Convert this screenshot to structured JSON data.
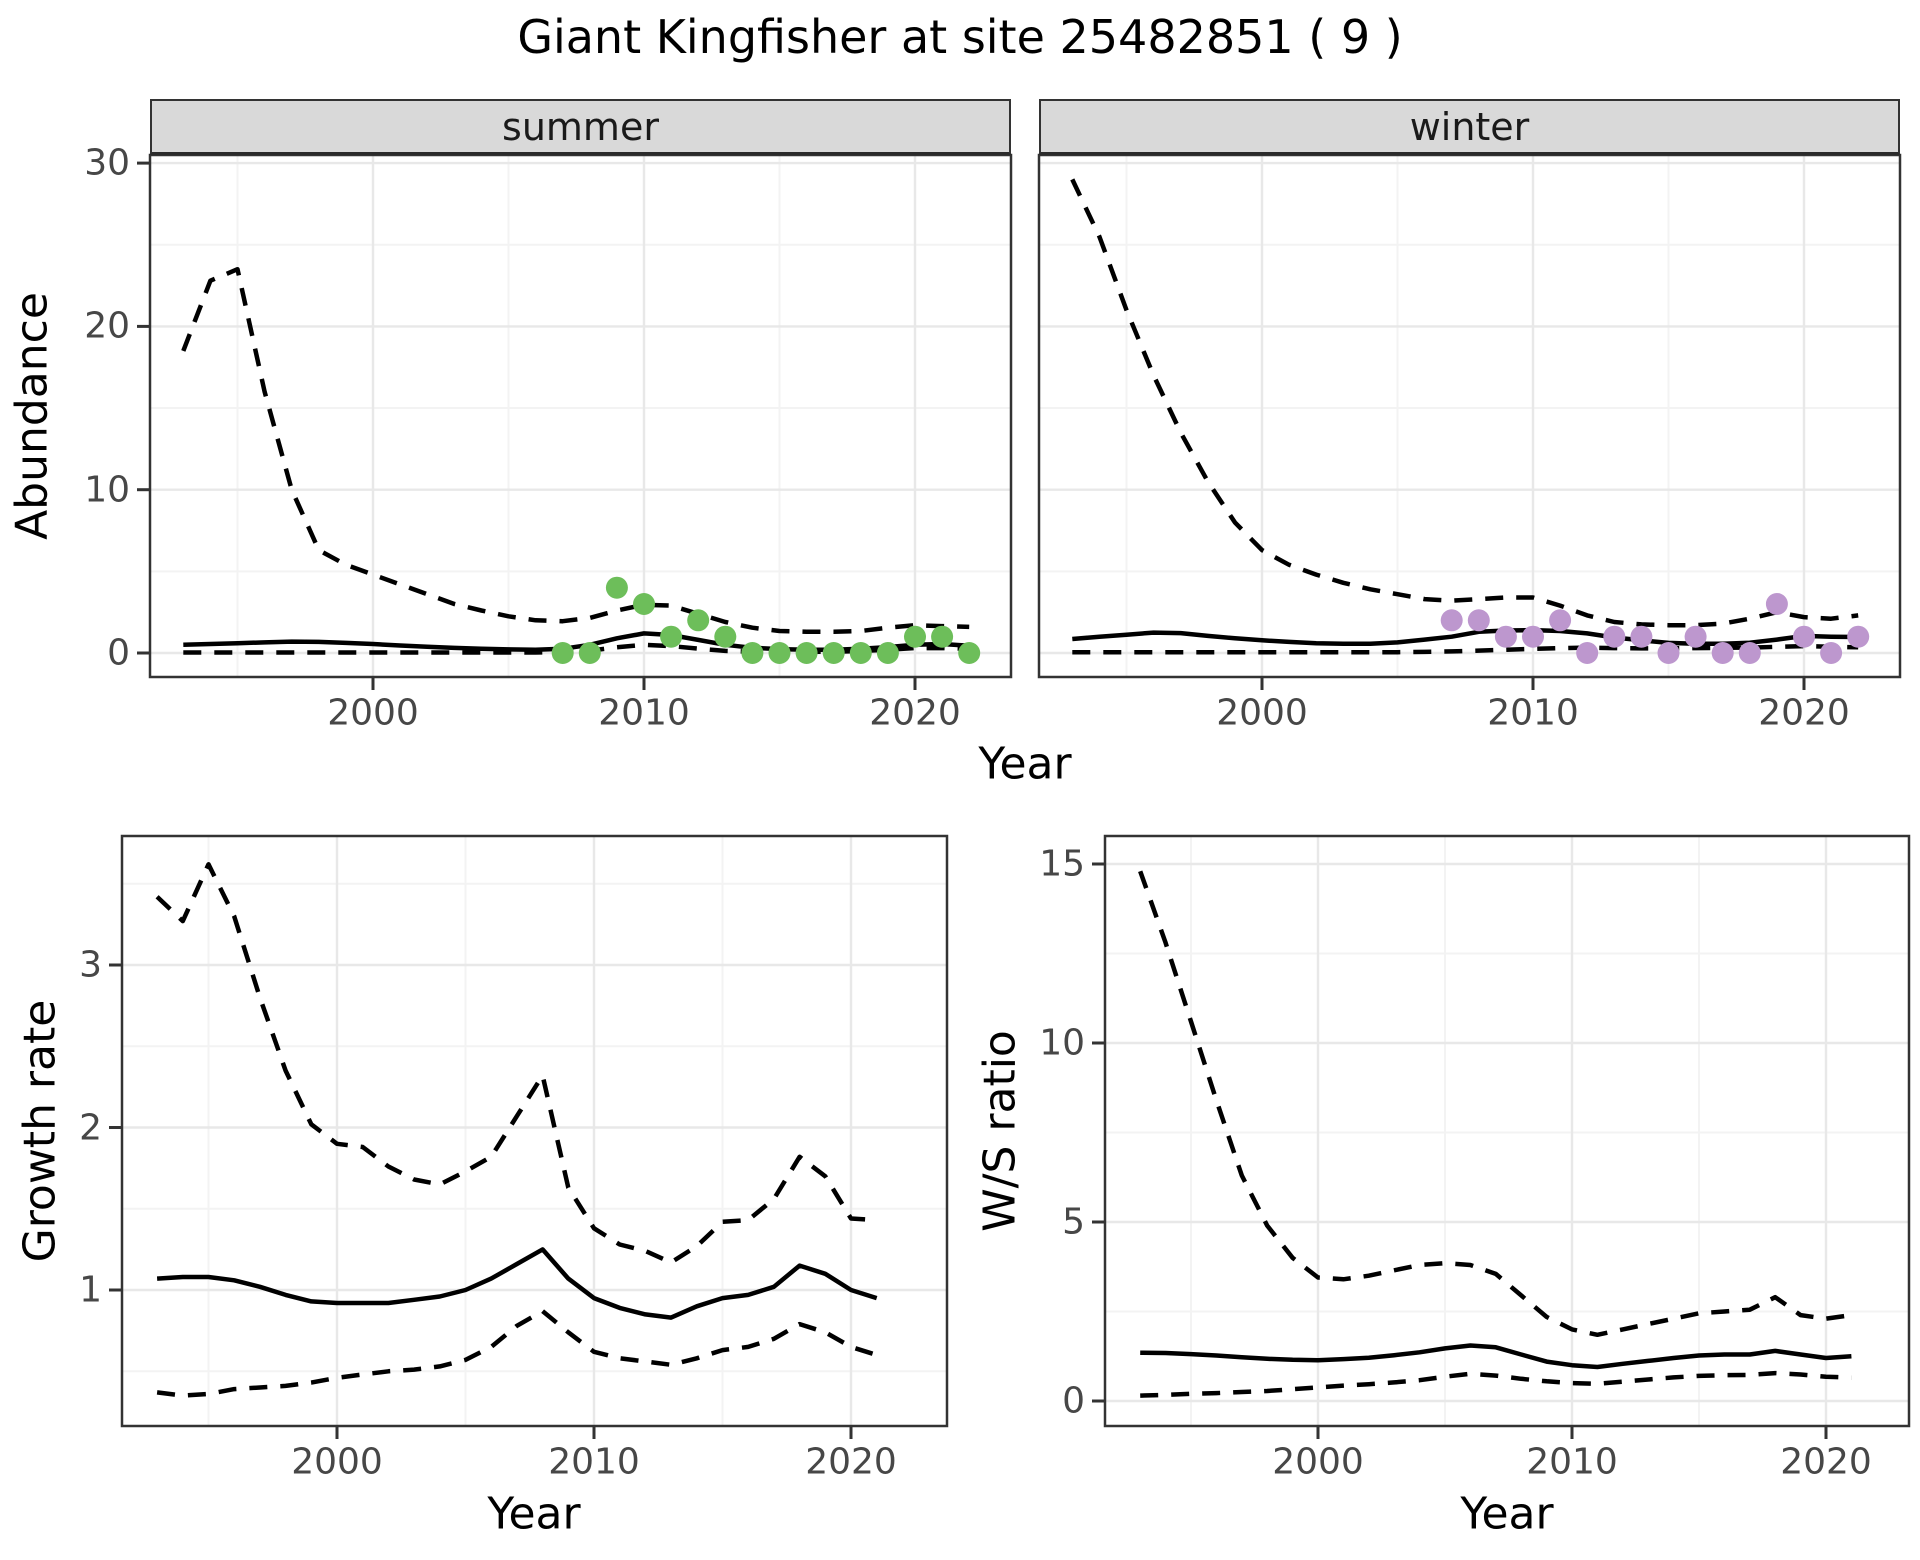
{
  "title": "Giant Kingfisher at site 25482851 ( 9 )",
  "labels": {
    "year_axis": "Year",
    "abundance_axis": "Abundance",
    "growth_axis": "Growth rate",
    "ws_axis": "W/S ratio"
  },
  "facets": {
    "summer": "summer",
    "winter": "winter"
  },
  "colors": {
    "summer_points": "#6dbe5a",
    "winter_points": "#bd97ce",
    "line": "#000000",
    "grid_major": "#e8e8e8",
    "grid_minor": "#f3f3f3",
    "strip_bg": "#d9d9d9",
    "panel_border": "#333333",
    "tick_mark": "#333333",
    "tick_label": "#474747"
  },
  "chart_data": [
    {
      "id": "abundance-summer",
      "type": "line",
      "facet_label": "summer",
      "xlabel": "Year",
      "ylabel": "Abundance",
      "x_range": [
        1991.8,
        2023.5
      ],
      "y_range": [
        -1.5,
        30.5
      ],
      "x_ticks": [
        2000,
        2010,
        2020
      ],
      "x_minor": [
        1995,
        2005,
        2015
      ],
      "y_ticks": [
        0,
        10,
        20,
        30
      ],
      "y_minor": [
        5,
        15,
        25
      ],
      "grid": true,
      "legend": "none",
      "x": [
        1993,
        1994,
        1995,
        1996,
        1997,
        1998,
        1999,
        2000,
        2001,
        2002,
        2003,
        2004,
        2005,
        2006,
        2007,
        2008,
        2009,
        2010,
        2011,
        2012,
        2013,
        2014,
        2015,
        2016,
        2017,
        2018,
        2019,
        2020,
        2021,
        2022
      ],
      "series": [
        {
          "name": "mean",
          "style": "solid",
          "values": [
            0.5,
            0.55,
            0.6,
            0.65,
            0.7,
            0.68,
            0.62,
            0.55,
            0.46,
            0.38,
            0.31,
            0.26,
            0.22,
            0.2,
            0.26,
            0.5,
            0.9,
            1.2,
            1.1,
            0.8,
            0.5,
            0.32,
            0.24,
            0.2,
            0.2,
            0.26,
            0.36,
            0.5,
            0.55,
            0.45
          ]
        },
        {
          "name": "upper_ci",
          "style": "dashed",
          "values": [
            18.5,
            22.8,
            23.5,
            16.0,
            10.0,
            6.3,
            5.4,
            4.8,
            4.2,
            3.6,
            3.0,
            2.6,
            2.25,
            2.0,
            1.95,
            2.15,
            2.6,
            2.95,
            2.9,
            2.4,
            1.9,
            1.55,
            1.35,
            1.3,
            1.3,
            1.35,
            1.55,
            1.7,
            1.65,
            1.6
          ]
        },
        {
          "name": "lower_ci",
          "style": "dashed",
          "values": [
            0.03,
            0.03,
            0.03,
            0.03,
            0.03,
            0.03,
            0.03,
            0.03,
            0.03,
            0.03,
            0.03,
            0.03,
            0.03,
            0.03,
            0.05,
            0.15,
            0.35,
            0.5,
            0.42,
            0.27,
            0.13,
            0.08,
            0.07,
            0.07,
            0.08,
            0.12,
            0.2,
            0.3,
            0.3,
            0.25
          ]
        }
      ],
      "points": {
        "name": "observed-summer",
        "color_key": "summer_points",
        "x": [
          2007,
          2008,
          2009,
          2010,
          2011,
          2012,
          2013,
          2014,
          2015,
          2016,
          2017,
          2018,
          2019,
          2020,
          2021,
          2022
        ],
        "y": [
          0,
          0,
          4,
          3,
          1,
          2,
          1,
          0,
          0,
          0,
          0,
          0,
          0,
          1,
          1,
          0
        ]
      }
    },
    {
      "id": "abundance-winter",
      "type": "line",
      "facet_label": "winter",
      "xlabel": "Year",
      "ylabel": "Abundance",
      "x_range": [
        1991.8,
        2023.5
      ],
      "y_range": [
        -1.5,
        30.5
      ],
      "x_ticks": [
        2000,
        2010,
        2020
      ],
      "x_minor": [
        1995,
        2005,
        2015
      ],
      "y_ticks": [
        0,
        10,
        20,
        30
      ],
      "y_minor": [
        5,
        15,
        25
      ],
      "grid": true,
      "legend": "none",
      "x": [
        1993,
        1994,
        1995,
        1996,
        1997,
        1998,
        1999,
        2000,
        2001,
        2002,
        2003,
        2004,
        2005,
        2006,
        2007,
        2008,
        2009,
        2010,
        2011,
        2012,
        2013,
        2014,
        2015,
        2016,
        2017,
        2018,
        2019,
        2020,
        2021,
        2022
      ],
      "series": [
        {
          "name": "mean",
          "style": "solid",
          "values": [
            0.86,
            1.0,
            1.12,
            1.25,
            1.22,
            1.05,
            0.9,
            0.78,
            0.68,
            0.6,
            0.57,
            0.57,
            0.65,
            0.82,
            1.0,
            1.3,
            1.38,
            1.4,
            1.35,
            1.2,
            0.95,
            0.78,
            0.62,
            0.57,
            0.57,
            0.63,
            0.82,
            1.05,
            1.0,
            0.98
          ]
        },
        {
          "name": "upper_ci",
          "style": "dashed",
          "values": [
            29.0,
            25.5,
            21.0,
            17.0,
            13.5,
            10.5,
            8.0,
            6.3,
            5.4,
            4.8,
            4.3,
            3.9,
            3.6,
            3.3,
            3.2,
            3.3,
            3.4,
            3.4,
            2.9,
            2.3,
            1.9,
            1.75,
            1.7,
            1.7,
            1.8,
            2.1,
            2.5,
            2.2,
            2.1,
            2.3
          ]
        },
        {
          "name": "lower_ci",
          "style": "dashed",
          "values": [
            0.05,
            0.05,
            0.05,
            0.05,
            0.05,
            0.05,
            0.05,
            0.05,
            0.05,
            0.05,
            0.05,
            0.05,
            0.05,
            0.07,
            0.1,
            0.15,
            0.2,
            0.25,
            0.3,
            0.33,
            0.3,
            0.28,
            0.28,
            0.3,
            0.32,
            0.33,
            0.38,
            0.42,
            0.38,
            0.35
          ]
        }
      ],
      "points": {
        "name": "observed-winter",
        "color_key": "winter_points",
        "x": [
          2007,
          2008,
          2009,
          2010,
          2011,
          2012,
          2013,
          2014,
          2015,
          2016,
          2017,
          2018,
          2019,
          2020,
          2021,
          2022
        ],
        "y": [
          2,
          2,
          1,
          1,
          2,
          0,
          1,
          1,
          0,
          1,
          0,
          0,
          3,
          1,
          0,
          1
        ]
      }
    },
    {
      "id": "growth-rate",
      "type": "line",
      "facet_label": "",
      "xlabel": "Year",
      "ylabel": "Growth rate",
      "x_range": [
        1991.6,
        2023.7
      ],
      "y_range": [
        0.16,
        3.79
      ],
      "x_ticks": [
        2000,
        2010,
        2020
      ],
      "x_minor": [
        1995,
        2005,
        2015
      ],
      "y_ticks": [
        1,
        2,
        3
      ],
      "y_minor": [
        0.5,
        1.5,
        2.5,
        3.5
      ],
      "grid": true,
      "legend": "none",
      "x": [
        1993,
        1994,
        1995,
        1996,
        1997,
        1998,
        1999,
        2000,
        2001,
        2002,
        2003,
        2004,
        2005,
        2006,
        2007,
        2008,
        2009,
        2010,
        2011,
        2012,
        2013,
        2014,
        2015,
        2016,
        2017,
        2018,
        2019,
        2020,
        2021
      ],
      "series": [
        {
          "name": "mean",
          "style": "solid",
          "values": [
            1.07,
            1.08,
            1.08,
            1.06,
            1.02,
            0.97,
            0.93,
            0.92,
            0.92,
            0.92,
            0.94,
            0.96,
            1.0,
            1.07,
            1.16,
            1.25,
            1.07,
            0.95,
            0.89,
            0.85,
            0.83,
            0.9,
            0.95,
            0.97,
            1.02,
            1.15,
            1.1,
            1.0,
            0.95
          ]
        },
        {
          "name": "upper_ci",
          "style": "dashed",
          "values": [
            3.42,
            3.27,
            3.62,
            3.3,
            2.8,
            2.35,
            2.02,
            1.9,
            1.88,
            1.76,
            1.68,
            1.65,
            1.73,
            1.82,
            2.07,
            2.32,
            1.63,
            1.38,
            1.28,
            1.24,
            1.17,
            1.27,
            1.42,
            1.43,
            1.56,
            1.82,
            1.7,
            1.44,
            1.43
          ]
        },
        {
          "name": "lower_ci",
          "style": "dashed",
          "values": [
            0.37,
            0.35,
            0.36,
            0.39,
            0.4,
            0.41,
            0.43,
            0.46,
            0.48,
            0.5,
            0.51,
            0.53,
            0.57,
            0.65,
            0.78,
            0.87,
            0.74,
            0.62,
            0.58,
            0.56,
            0.54,
            0.58,
            0.63,
            0.65,
            0.7,
            0.79,
            0.74,
            0.65,
            0.6
          ]
        }
      ],
      "points": null
    },
    {
      "id": "ws-ratio",
      "type": "line",
      "facet_label": "",
      "xlabel": "Year",
      "ylabel": "W/S ratio",
      "x_range": [
        1991.6,
        2023.3
      ],
      "y_range": [
        -0.7,
        15.8
      ],
      "x_ticks": [
        2000,
        2010,
        2020
      ],
      "x_minor": [
        1995,
        2005,
        2015
      ],
      "y_ticks": [
        0,
        5,
        10,
        15
      ],
      "y_minor": [
        2.5,
        7.5,
        12.5
      ],
      "grid": true,
      "legend": "none",
      "x": [
        1993,
        1994,
        1995,
        1996,
        1997,
        1998,
        1999,
        2000,
        2001,
        2002,
        2003,
        2004,
        2005,
        2006,
        2007,
        2008,
        2009,
        2010,
        2011,
        2012,
        2013,
        2014,
        2015,
        2016,
        2017,
        2018,
        2019,
        2020,
        2021
      ],
      "series": [
        {
          "name": "mean",
          "style": "solid",
          "values": [
            1.35,
            1.34,
            1.31,
            1.27,
            1.22,
            1.18,
            1.15,
            1.14,
            1.17,
            1.21,
            1.28,
            1.36,
            1.47,
            1.55,
            1.5,
            1.3,
            1.1,
            1.0,
            0.95,
            1.04,
            1.12,
            1.2,
            1.27,
            1.3,
            1.3,
            1.4,
            1.3,
            1.2,
            1.25
          ]
        },
        {
          "name": "upper_ci",
          "style": "dashed",
          "values": [
            14.8,
            12.8,
            10.6,
            8.4,
            6.3,
            4.9,
            4.0,
            3.45,
            3.4,
            3.5,
            3.65,
            3.8,
            3.85,
            3.8,
            3.55,
            2.95,
            2.35,
            2.0,
            1.85,
            2.0,
            2.15,
            2.3,
            2.45,
            2.5,
            2.55,
            2.9,
            2.4,
            2.3,
            2.4
          ]
        },
        {
          "name": "lower_ci",
          "style": "dashed",
          "values": [
            0.15,
            0.17,
            0.2,
            0.22,
            0.25,
            0.28,
            0.33,
            0.38,
            0.43,
            0.47,
            0.52,
            0.58,
            0.68,
            0.76,
            0.71,
            0.62,
            0.55,
            0.5,
            0.48,
            0.54,
            0.6,
            0.66,
            0.7,
            0.72,
            0.73,
            0.78,
            0.74,
            0.68,
            0.65
          ]
        }
      ],
      "points": null
    }
  ]
}
